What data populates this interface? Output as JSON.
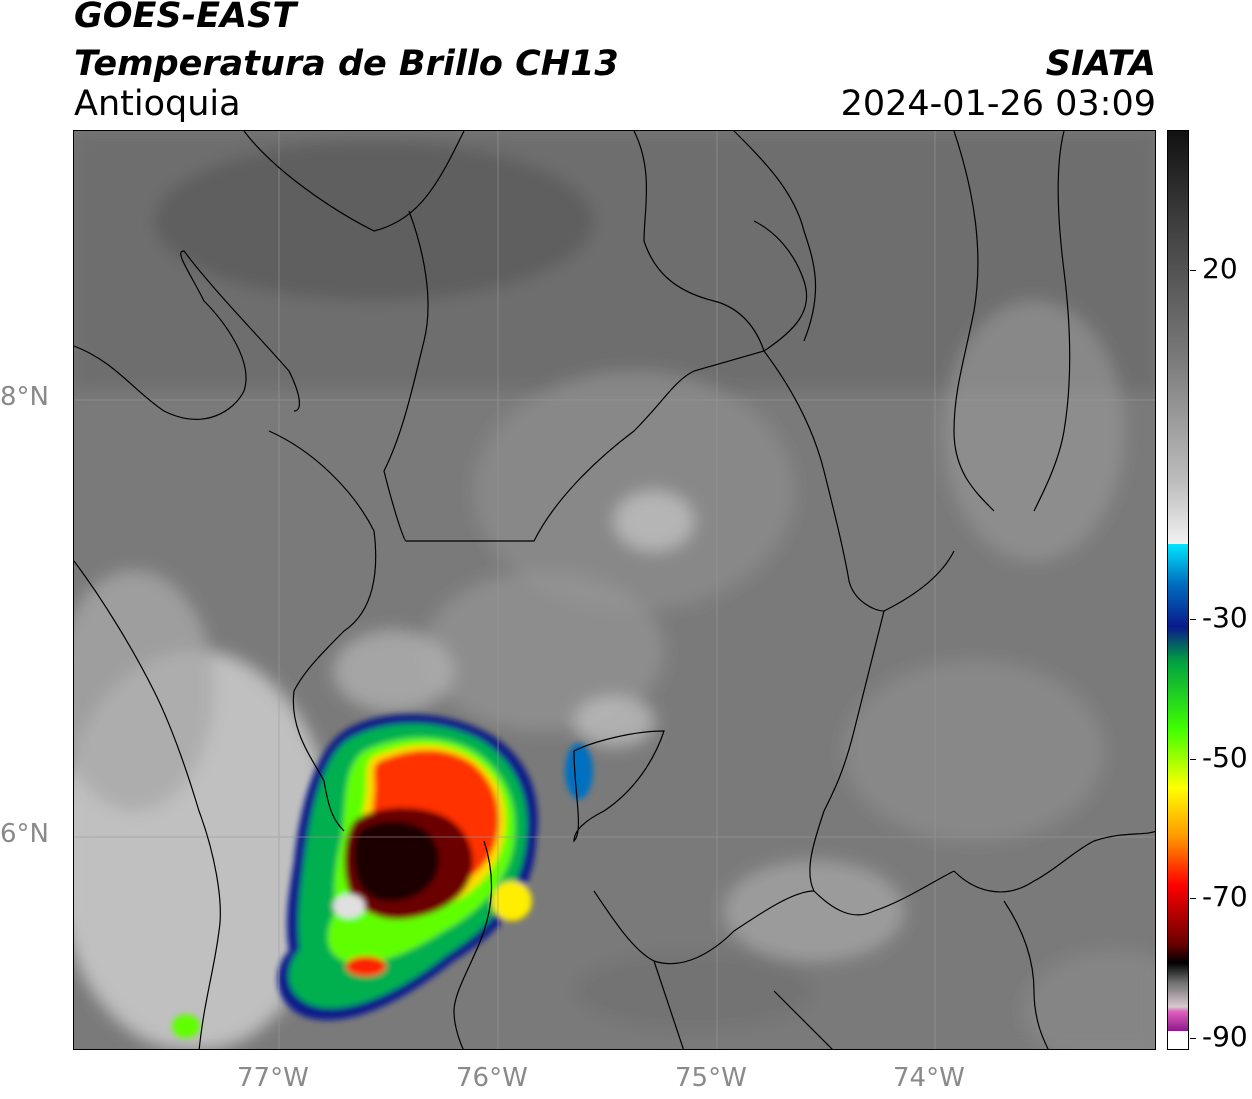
{
  "header": {
    "title": "GOES-EAST",
    "subtitle": "Temperatura de Brillo CH13",
    "region": "Antioquia",
    "organization": "SIATA",
    "datetime": "2024-01-26 03:09"
  },
  "map": {
    "lat_labels": [
      "8°N",
      "6°N"
    ],
    "lon_labels": [
      "77°W",
      "76°W",
      "75°W",
      "74°W"
    ],
    "colors": {
      "background_gray": "#787878",
      "border": "#000000",
      "gridline": "#9a9a9a"
    }
  },
  "colorbar": {
    "tick_labels": [
      "20",
      "-30",
      "-50",
      "-70",
      "-90"
    ],
    "colors": [
      "#111111",
      "#3a3a3a",
      "#7a7a7a",
      "#bdbdbd",
      "#f2f2f2",
      "#00e5ff",
      "#0a1a8a",
      "#00a040",
      "#40ff00",
      "#ffff00",
      "#ff9900",
      "#ff0000",
      "#6a0000",
      "#000000",
      "#d8c8d0",
      "#e060c0",
      "#8a1a8a"
    ]
  }
}
